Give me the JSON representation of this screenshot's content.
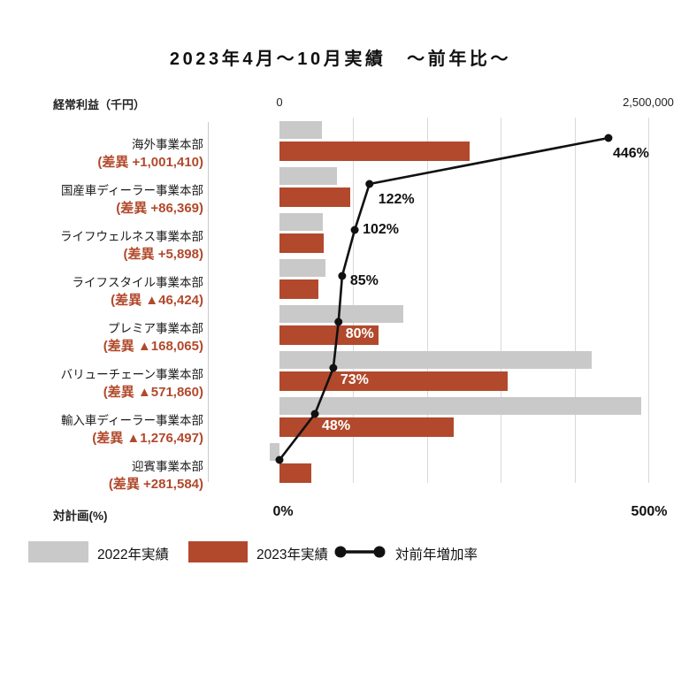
{
  "title": "2023年4月～10月実績　～前年比～",
  "axes": {
    "value_axis_label": "経常利益（千円）",
    "value_tick_min": "0",
    "value_tick_max": "2,500,000",
    "pct_axis_label": "対計画(%)",
    "pct_tick_min": "0%",
    "pct_tick_max": "500%"
  },
  "colors": {
    "bar_2022": "#c9c9c9",
    "bar_2023": "#b2492c",
    "diff_text": "#b2492c",
    "line": "#111111",
    "gridline": "#d9d9d9"
  },
  "legend": [
    {
      "label": "2022年実績",
      "type": "bar",
      "color": "#c9c9c9"
    },
    {
      "label": "2023年実績",
      "type": "bar",
      "color": "#b2492c"
    },
    {
      "label": "対前年増加率",
      "type": "line",
      "color": "#111111"
    }
  ],
  "chart_data": {
    "type": "bar",
    "orientation": "horizontal",
    "title": "2023年4月～10月実績　～前年比～",
    "categories": [
      "海外事業本部",
      "国産車ディーラー事業本部",
      "ライフウェルネス事業本部",
      "ライフスタイル事業本部",
      "プレミア事業本部",
      "バリューチェーン事業本部",
      "輸入車ディーラー事業本部",
      "迎賓事業本部"
    ],
    "category_diff_labels": [
      "(差異 +1,001,410)",
      "(差異 +86,369)",
      "(差異 +5,898)",
      "(差異 ▲46,424)",
      "(差異 ▲168,065)",
      "(差異 ▲571,860)",
      "(差異 ▲1,276,497)",
      "(差異 +281,584)"
    ],
    "series": [
      {
        "name": "2022年実績",
        "color": "#c9c9c9",
        "values": [
          289400,
          392600,
          294900,
          309500,
          840300,
          2118000,
          2454800,
          -66000
        ]
      },
      {
        "name": "2023年実績",
        "color": "#b2492c",
        "values": [
          1290800,
          479000,
          300800,
          263100,
          672300,
          1546100,
          1178300,
          215600
        ]
      }
    ],
    "line_series": {
      "name": "対前年増加率",
      "unit": "%",
      "values": [
        446,
        122,
        102,
        85,
        80,
        73,
        48,
        0
      ],
      "point_labels": [
        "446%",
        "122%",
        "102%",
        "85%",
        "80%",
        "73%",
        "48%",
        ""
      ]
    },
    "value_axis": {
      "min": 0,
      "max": 2500000,
      "gridline_step": 500000,
      "tick_labels": [
        "0",
        "2,500,000"
      ]
    },
    "pct_axis": {
      "min": 0,
      "max": 500,
      "tick_labels": [
        "0%",
        "500%"
      ]
    },
    "grid": true,
    "legend_position": "bottom"
  }
}
